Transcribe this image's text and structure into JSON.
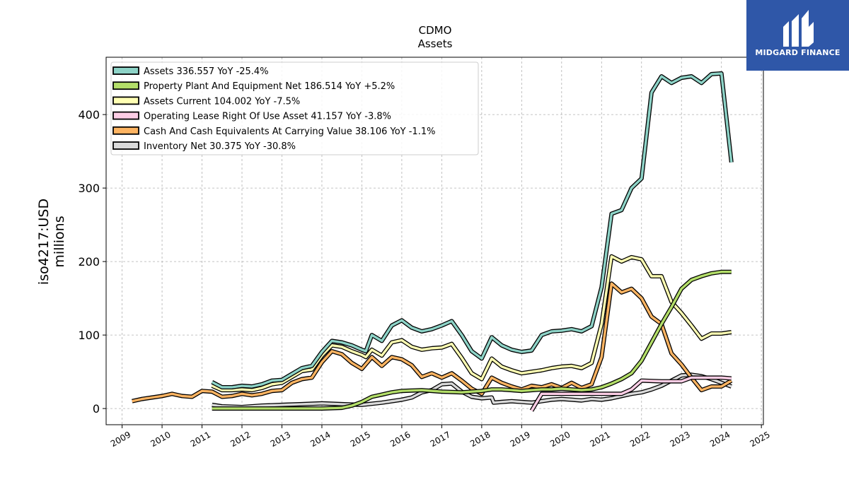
{
  "brand": {
    "name": "MIDGARD FINANCE",
    "logo_color": "#2f57a8"
  },
  "chart_data": {
    "type": "line",
    "title": "CDMO",
    "subtitle": "Assets",
    "ylabel_line1": "iso4217:USD",
    "ylabel_line2": "millions",
    "xlim": [
      2008.6,
      2025.05
    ],
    "ylim": [
      -22,
      478
    ],
    "xticks": [
      2009,
      2010,
      2011,
      2012,
      2013,
      2014,
      2015,
      2016,
      2017,
      2018,
      2019,
      2020,
      2021,
      2022,
      2023,
      2024,
      2025
    ],
    "yticks": [
      0,
      100,
      200,
      300,
      400
    ],
    "grid": true,
    "legend_position": "top-left",
    "series": [
      {
        "name": "Assets  336.557 YoY -25.4%",
        "color": "#8dd3c7",
        "points": [
          [
            2011.25,
            36
          ],
          [
            2011.5,
            29
          ],
          [
            2011.75,
            29
          ],
          [
            2012.0,
            31
          ],
          [
            2012.25,
            30
          ],
          [
            2012.5,
            33
          ],
          [
            2012.75,
            38
          ],
          [
            2013.0,
            39
          ],
          [
            2013.25,
            47
          ],
          [
            2013.5,
            55
          ],
          [
            2013.75,
            58
          ],
          [
            2014.0,
            77
          ],
          [
            2014.25,
            92
          ],
          [
            2014.5,
            90
          ],
          [
            2014.75,
            86
          ],
          [
            2015.0,
            80
          ],
          [
            2015.1,
            78
          ],
          [
            2015.25,
            100
          ],
          [
            2015.5,
            92
          ],
          [
            2015.75,
            113
          ],
          [
            2016.0,
            120
          ],
          [
            2016.25,
            110
          ],
          [
            2016.5,
            105
          ],
          [
            2016.75,
            108
          ],
          [
            2017.0,
            113
          ],
          [
            2017.25,
            119
          ],
          [
            2017.5,
            100
          ],
          [
            2017.75,
            78
          ],
          [
            2018.0,
            68
          ],
          [
            2018.25,
            97
          ],
          [
            2018.5,
            86
          ],
          [
            2018.75,
            80
          ],
          [
            2019.0,
            77
          ],
          [
            2019.25,
            79
          ],
          [
            2019.5,
            100
          ],
          [
            2019.75,
            105
          ],
          [
            2020.0,
            106
          ],
          [
            2020.25,
            108
          ],
          [
            2020.5,
            105
          ],
          [
            2020.75,
            112
          ],
          [
            2021.0,
            165
          ],
          [
            2021.25,
            265
          ],
          [
            2021.5,
            270
          ],
          [
            2021.75,
            300
          ],
          [
            2022.0,
            313
          ],
          [
            2022.25,
            430
          ],
          [
            2022.5,
            452
          ],
          [
            2022.75,
            443
          ],
          [
            2023.0,
            450
          ],
          [
            2023.25,
            452
          ],
          [
            2023.5,
            443
          ],
          [
            2023.75,
            455
          ],
          [
            2024.0,
            456
          ],
          [
            2024.25,
            335
          ]
        ]
      },
      {
        "name": "Property Plant And Equipment Net  186.514 YoY +5.2%",
        "color": "#b3de69",
        "points": [
          [
            2011.25,
            0
          ],
          [
            2012.0,
            0
          ],
          [
            2013.0,
            0
          ],
          [
            2014.0,
            0
          ],
          [
            2014.5,
            1
          ],
          [
            2014.75,
            4
          ],
          [
            2015.0,
            9
          ],
          [
            2015.25,
            16
          ],
          [
            2015.5,
            19
          ],
          [
            2015.75,
            22
          ],
          [
            2016.0,
            24
          ],
          [
            2016.5,
            25
          ],
          [
            2017.0,
            23
          ],
          [
            2017.5,
            22
          ],
          [
            2018.0,
            24
          ],
          [
            2018.25,
            26
          ],
          [
            2018.5,
            26
          ],
          [
            2018.75,
            25
          ],
          [
            2019.0,
            24
          ],
          [
            2019.25,
            25
          ],
          [
            2019.5,
            26
          ],
          [
            2019.75,
            26
          ],
          [
            2020.0,
            27
          ],
          [
            2020.25,
            26
          ],
          [
            2020.5,
            25
          ],
          [
            2020.75,
            26
          ],
          [
            2021.0,
            29
          ],
          [
            2021.25,
            34
          ],
          [
            2021.5,
            40
          ],
          [
            2021.75,
            48
          ],
          [
            2022.0,
            65
          ],
          [
            2022.25,
            90
          ],
          [
            2022.5,
            115
          ],
          [
            2022.75,
            138
          ],
          [
            2023.0,
            163
          ],
          [
            2023.25,
            175
          ],
          [
            2023.5,
            180
          ],
          [
            2023.75,
            184
          ],
          [
            2024.0,
            186
          ],
          [
            2024.25,
            186
          ]
        ]
      },
      {
        "name": "Assets Current  104.002 YoY -7.5%",
        "color": "#ffffb3",
        "points": [
          [
            2011.25,
            31
          ],
          [
            2011.5,
            25
          ],
          [
            2011.75,
            25
          ],
          [
            2012.0,
            26
          ],
          [
            2012.25,
            25
          ],
          [
            2012.5,
            28
          ],
          [
            2012.75,
            33
          ],
          [
            2013.0,
            35
          ],
          [
            2013.25,
            43
          ],
          [
            2013.5,
            51
          ],
          [
            2013.75,
            53
          ],
          [
            2014.0,
            72
          ],
          [
            2014.25,
            86
          ],
          [
            2014.5,
            84
          ],
          [
            2014.75,
            78
          ],
          [
            2015.0,
            73
          ],
          [
            2015.1,
            70
          ],
          [
            2015.25,
            80
          ],
          [
            2015.5,
            72
          ],
          [
            2015.75,
            90
          ],
          [
            2016.0,
            93
          ],
          [
            2016.25,
            84
          ],
          [
            2016.5,
            80
          ],
          [
            2016.75,
            82
          ],
          [
            2017.0,
            83
          ],
          [
            2017.25,
            88
          ],
          [
            2017.5,
            69
          ],
          [
            2017.75,
            48
          ],
          [
            2018.0,
            40
          ],
          [
            2018.25,
            68
          ],
          [
            2018.5,
            57
          ],
          [
            2018.75,
            52
          ],
          [
            2019.0,
            48
          ],
          [
            2019.25,
            50
          ],
          [
            2019.5,
            52
          ],
          [
            2019.75,
            55
          ],
          [
            2020.0,
            57
          ],
          [
            2020.25,
            58
          ],
          [
            2020.5,
            55
          ],
          [
            2020.75,
            62
          ],
          [
            2021.0,
            115
          ],
          [
            2021.25,
            207
          ],
          [
            2021.5,
            200
          ],
          [
            2021.75,
            206
          ],
          [
            2022.0,
            203
          ],
          [
            2022.25,
            180
          ],
          [
            2022.5,
            180
          ],
          [
            2022.75,
            145
          ],
          [
            2023.0,
            130
          ],
          [
            2023.25,
            113
          ],
          [
            2023.5,
            95
          ],
          [
            2023.75,
            102
          ],
          [
            2024.0,
            102
          ],
          [
            2024.25,
            104
          ]
        ]
      },
      {
        "name": "Operating Lease Right Of Use Asset  41.157 YoY -3.8%",
        "color": "#fccde5",
        "points": [
          [
            2019.25,
            -3
          ],
          [
            2019.5,
            20
          ],
          [
            2019.75,
            20
          ],
          [
            2020.0,
            20
          ],
          [
            2020.5,
            20
          ],
          [
            2021.0,
            20
          ],
          [
            2021.5,
            20
          ],
          [
            2021.75,
            26
          ],
          [
            2022.0,
            38
          ],
          [
            2022.5,
            37
          ],
          [
            2023.0,
            37
          ],
          [
            2023.25,
            42
          ],
          [
            2023.5,
            42
          ],
          [
            2024.0,
            42
          ],
          [
            2024.25,
            41
          ]
        ]
      },
      {
        "name": "Cash And Cash Equivalents At Carrying Value  38.106 YoY -1.1%",
        "color": "#fdb462",
        "points": [
          [
            2009.25,
            10
          ],
          [
            2009.5,
            13
          ],
          [
            2009.75,
            15
          ],
          [
            2010.0,
            17
          ],
          [
            2010.25,
            20
          ],
          [
            2010.5,
            17
          ],
          [
            2010.75,
            16
          ],
          [
            2011.0,
            24
          ],
          [
            2011.25,
            23
          ],
          [
            2011.5,
            16
          ],
          [
            2011.75,
            17
          ],
          [
            2012.0,
            20
          ],
          [
            2012.25,
            18
          ],
          [
            2012.5,
            20
          ],
          [
            2012.75,
            24
          ],
          [
            2013.0,
            25
          ],
          [
            2013.25,
            35
          ],
          [
            2013.5,
            40
          ],
          [
            2013.75,
            42
          ],
          [
            2014.0,
            63
          ],
          [
            2014.25,
            78
          ],
          [
            2014.5,
            74
          ],
          [
            2014.75,
            62
          ],
          [
            2015.0,
            54
          ],
          [
            2015.25,
            70
          ],
          [
            2015.5,
            58
          ],
          [
            2015.75,
            70
          ],
          [
            2016.0,
            67
          ],
          [
            2016.25,
            59
          ],
          [
            2016.5,
            43
          ],
          [
            2016.75,
            48
          ],
          [
            2017.0,
            42
          ],
          [
            2017.25,
            48
          ],
          [
            2017.5,
            38
          ],
          [
            2017.75,
            27
          ],
          [
            2018.0,
            20
          ],
          [
            2018.25,
            42
          ],
          [
            2018.5,
            35
          ],
          [
            2018.75,
            30
          ],
          [
            2019.0,
            26
          ],
          [
            2019.25,
            31
          ],
          [
            2019.5,
            29
          ],
          [
            2019.75,
            33
          ],
          [
            2020.0,
            28
          ],
          [
            2020.25,
            35
          ],
          [
            2020.5,
            28
          ],
          [
            2020.75,
            33
          ],
          [
            2021.0,
            70
          ],
          [
            2021.25,
            170
          ],
          [
            2021.5,
            158
          ],
          [
            2021.75,
            163
          ],
          [
            2022.0,
            150
          ],
          [
            2022.25,
            125
          ],
          [
            2022.5,
            115
          ],
          [
            2022.75,
            75
          ],
          [
            2023.0,
            60
          ],
          [
            2023.25,
            42
          ],
          [
            2023.5,
            25
          ],
          [
            2023.75,
            30
          ],
          [
            2024.0,
            30
          ],
          [
            2024.25,
            38
          ]
        ]
      },
      {
        "name": "Inventory Net  30.375 YoY -30.8%",
        "color": "#d9d9d9",
        "points": [
          [
            2011.25,
            5
          ],
          [
            2011.5,
            3
          ],
          [
            2012.0,
            2
          ],
          [
            2012.5,
            4
          ],
          [
            2013.0,
            5
          ],
          [
            2013.5,
            6
          ],
          [
            2014.0,
            7
          ],
          [
            2014.5,
            6
          ],
          [
            2015.0,
            5
          ],
          [
            2015.5,
            8
          ],
          [
            2016.0,
            12
          ],
          [
            2016.25,
            15
          ],
          [
            2016.5,
            22
          ],
          [
            2016.75,
            25
          ],
          [
            2017.0,
            33
          ],
          [
            2017.25,
            34
          ],
          [
            2017.5,
            23
          ],
          [
            2017.75,
            16
          ],
          [
            2018.0,
            14
          ],
          [
            2018.25,
            15
          ],
          [
            2018.3,
            8
          ],
          [
            2018.5,
            9
          ],
          [
            2018.75,
            10
          ],
          [
            2019.0,
            9
          ],
          [
            2019.25,
            8
          ],
          [
            2019.5,
            10
          ],
          [
            2019.75,
            12
          ],
          [
            2020.0,
            13
          ],
          [
            2020.25,
            12
          ],
          [
            2020.5,
            11
          ],
          [
            2020.75,
            13
          ],
          [
            2021.0,
            12
          ],
          [
            2021.25,
            14
          ],
          [
            2021.5,
            17
          ],
          [
            2021.75,
            20
          ],
          [
            2022.0,
            22
          ],
          [
            2022.25,
            26
          ],
          [
            2022.5,
            31
          ],
          [
            2022.75,
            38
          ],
          [
            2023.0,
            45
          ],
          [
            2023.25,
            46
          ],
          [
            2023.5,
            44
          ],
          [
            2023.75,
            40
          ],
          [
            2024.0,
            35
          ],
          [
            2024.25,
            30
          ]
        ]
      }
    ]
  }
}
